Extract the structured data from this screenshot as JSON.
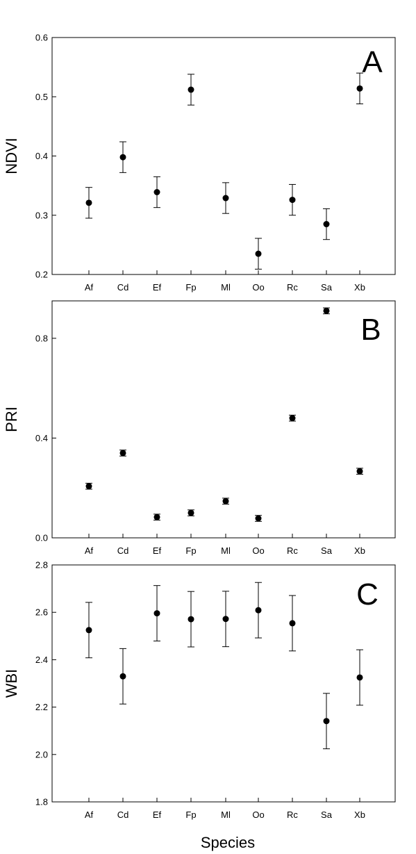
{
  "figure": {
    "xlabel": "Species"
  },
  "chart_data": [
    {
      "type": "scatter",
      "panel_letter": "A",
      "ylabel": "NDVI",
      "ylim": [
        0.2,
        0.6
      ],
      "yticks": [
        "0.2",
        "0.3",
        "0.4",
        "0.5",
        "0.6"
      ],
      "categories": [
        "Af",
        "Cd",
        "Ef",
        "Fp",
        "Ml",
        "Oo",
        "Rc",
        "Sa",
        "Xb"
      ],
      "values": [
        0.321,
        0.398,
        0.339,
        0.512,
        0.329,
        0.235,
        0.326,
        0.285,
        0.514
      ],
      "errors": [
        0.026,
        0.026,
        0.026,
        0.026,
        0.026,
        0.026,
        0.026,
        0.026,
        0.026
      ]
    },
    {
      "type": "scatter",
      "panel_letter": "B",
      "ylabel": "PRI",
      "ylim": [
        0.0,
        0.95
      ],
      "yticks": [
        "0.0",
        "0.4",
        "0.8"
      ],
      "categories": [
        "Af",
        "Cd",
        "Ef",
        "Fp",
        "Ml",
        "Oo",
        "Rc",
        "Sa",
        "Xb"
      ],
      "values": [
        0.207,
        0.34,
        0.083,
        0.1,
        0.147,
        0.078,
        0.48,
        0.91,
        0.267
      ],
      "errors": [
        0.012,
        0.012,
        0.012,
        0.012,
        0.012,
        0.012,
        0.012,
        0.012,
        0.012
      ]
    },
    {
      "type": "scatter",
      "panel_letter": "C",
      "ylabel": "WBI",
      "ylim": [
        1.8,
        2.8
      ],
      "yticks": [
        "1.8",
        "2.0",
        "2.2",
        "2.4",
        "2.6",
        "2.8"
      ],
      "categories": [
        "Af",
        "Cd",
        "Ef",
        "Fp",
        "Ml",
        "Oo",
        "Rc",
        "Sa",
        "Xb"
      ],
      "values": [
        2.525,
        2.33,
        2.596,
        2.571,
        2.572,
        2.609,
        2.554,
        2.141,
        2.325
      ],
      "errors": [
        0.117,
        0.117,
        0.117,
        0.117,
        0.117,
        0.117,
        0.117,
        0.117,
        0.117
      ]
    }
  ]
}
